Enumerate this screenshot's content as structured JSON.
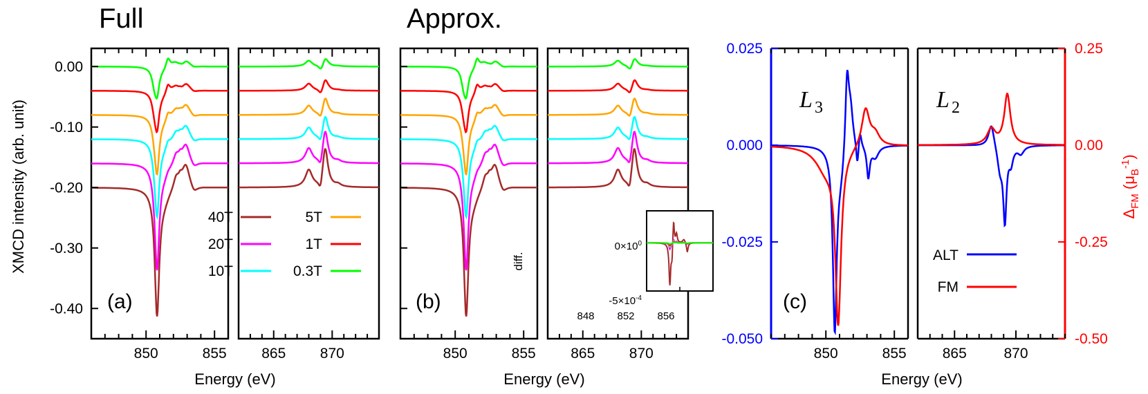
{
  "panel_titles": {
    "a": "Full",
    "b": "Approx."
  },
  "labels": {
    "ylabel_left": "XMCD intensity (arb. unit)",
    "xlabel": "Energy (eV)",
    "ylabel_right": "Δ_FM (μ_B^-1)",
    "panel_a": "(a)",
    "panel_b": "(b)",
    "panel_c": "(c)",
    "L3": "L",
    "L3_sub": "3",
    "L2": "L",
    "L2_sub": "2",
    "inset_ylabel": "diff."
  },
  "colors": {
    "40T": "#a52a2a",
    "20T": "#ff00ff",
    "10T": "#00ffff",
    "5T": "#ffa500",
    "1T": "#ff0000",
    "0.3T": "#00ff00",
    "ALT": "#0000ff",
    "FM": "#ff0000"
  },
  "chart_data": [
    {
      "id": "a",
      "type": "line",
      "title": "Full",
      "xlabel": "Energy (eV)",
      "ylabel": "XMCD intensity (arb. unit)",
      "x_ranges": [
        [
          846,
          856
        ],
        [
          862,
          874
        ]
      ],
      "ylim": [
        -0.45,
        0.03
      ],
      "xticks": [
        [
          850,
          855
        ],
        [
          865,
          870
        ]
      ],
      "yticks": [
        0.0,
        -0.1,
        -0.2,
        -0.3,
        -0.4
      ],
      "ytick_labels": [
        "0.00",
        "-0.10",
        "-0.20",
        "-0.30",
        "-0.40"
      ],
      "legend": [
        "40T",
        "20T",
        "10T",
        "5T",
        "1T",
        "0.3T"
      ],
      "series": [
        {
          "name": "0.3T",
          "offset": 0.0,
          "scale": 0.2
        },
        {
          "name": "1T",
          "offset": -0.04,
          "scale": 0.28
        },
        {
          "name": "5T",
          "offset": -0.08,
          "scale": 0.43
        },
        {
          "name": "10T",
          "offset": -0.12,
          "scale": 0.58
        },
        {
          "name": "20T",
          "offset": -0.16,
          "scale": 0.82
        },
        {
          "name": "40T",
          "offset": -0.2,
          "scale": 1.0
        }
      ]
    },
    {
      "id": "b",
      "type": "line",
      "title": "Approx.",
      "xlabel": "Energy (eV)",
      "x_ranges": [
        [
          846,
          856
        ],
        [
          862,
          874
        ]
      ],
      "ylim": [
        -0.45,
        0.03
      ],
      "xticks": [
        [
          850,
          855
        ],
        [
          865,
          870
        ]
      ],
      "series": [
        {
          "name": "0.3T",
          "offset": 0.0,
          "scale": 0.2
        },
        {
          "name": "1T",
          "offset": -0.04,
          "scale": 0.28
        },
        {
          "name": "5T",
          "offset": -0.08,
          "scale": 0.43
        },
        {
          "name": "10T",
          "offset": -0.12,
          "scale": 0.58
        },
        {
          "name": "20T",
          "offset": -0.16,
          "scale": 0.82
        },
        {
          "name": "40T",
          "offset": -0.2,
          "scale": 1.0
        }
      ],
      "inset": {
        "ylabel": "diff.",
        "xlim": [
          848,
          856
        ],
        "ylim": [
          -0.0006,
          0.0004
        ],
        "xticks": [
          848,
          852,
          856
        ],
        "ytick_labels": [
          "0×10^0",
          "-5×10^-4"
        ]
      }
    },
    {
      "id": "c",
      "type": "line",
      "xlabel": "Energy (eV)",
      "x_ranges": [
        [
          846,
          856
        ],
        [
          862,
          874
        ]
      ],
      "ylim_left": [
        -0.05,
        0.025
      ],
      "ylim_right": [
        -0.5,
        0.25
      ],
      "yticks_left": [
        "0.025",
        "0.000",
        "-0.025",
        "-0.050"
      ],
      "yticks_right": [
        "0.25",
        "0.00",
        "-0.25",
        "-0.50"
      ],
      "legend": [
        "ALT",
        "FM"
      ],
      "series": [
        {
          "name": "ALT",
          "axis": "left"
        },
        {
          "name": "FM",
          "axis": "right"
        }
      ]
    }
  ]
}
